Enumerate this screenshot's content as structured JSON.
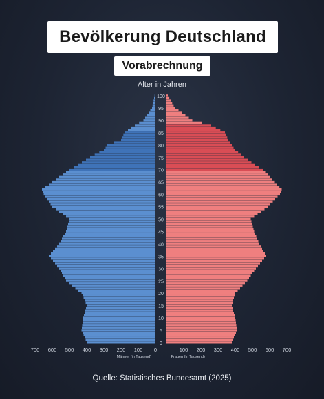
{
  "header": {
    "title": "Bevölkerung Deutschland",
    "subtitle": "Vorabrechnung"
  },
  "source": "Quelle: Statistisches Bundesamt (2025)",
  "colors": {
    "men": "#5b8fd0",
    "men_older": "#3f73b8",
    "women": "#ef7f7f",
    "women_older": "#d94d55",
    "tick_text": "#cfd5df"
  },
  "chart_data": {
    "type": "bar",
    "orientation": "horizontal-population-pyramid",
    "y_axis_label": "Alter in Jahren",
    "y_ticks": [
      0,
      5,
      10,
      15,
      20,
      25,
      30,
      35,
      40,
      45,
      50,
      55,
      60,
      65,
      70,
      75,
      80,
      85,
      90,
      95,
      100
    ],
    "x_ticks_men": [
      700,
      600,
      500,
      400,
      300,
      200,
      100,
      0
    ],
    "x_ticks_women": [
      100,
      200,
      300,
      400,
      500,
      600,
      700
    ],
    "x_label_men": "Männer (in Tausend)",
    "x_label_women": "Frauen (in Tausend)",
    "xlim": [
      0,
      700
    ],
    "ylim": [
      0,
      100
    ],
    "series": [
      {
        "name": "Männer (in Tausend)",
        "ages": [
          0,
          5,
          10,
          15,
          20,
          25,
          30,
          35,
          40,
          45,
          50,
          55,
          60,
          62,
          65,
          70,
          75,
          78,
          80,
          82,
          85,
          88,
          90,
          95,
          100
        ],
        "values": [
          400,
          430,
          420,
          400,
          430,
          520,
          560,
          620,
          560,
          520,
          500,
          600,
          650,
          660,
          600,
          500,
          380,
          300,
          280,
          200,
          180,
          120,
          70,
          20,
          5
        ]
      },
      {
        "name": "Frauen (in Tausend)",
        "ages": [
          0,
          5,
          10,
          15,
          20,
          25,
          30,
          35,
          40,
          45,
          50,
          55,
          60,
          62,
          65,
          70,
          75,
          78,
          80,
          82,
          85,
          88,
          90,
          95,
          100
        ],
        "values": [
          380,
          410,
          400,
          380,
          400,
          470,
          520,
          580,
          540,
          510,
          490,
          590,
          660,
          670,
          630,
          560,
          450,
          400,
          380,
          360,
          340,
          260,
          150,
          50,
          8
        ]
      }
    ]
  }
}
